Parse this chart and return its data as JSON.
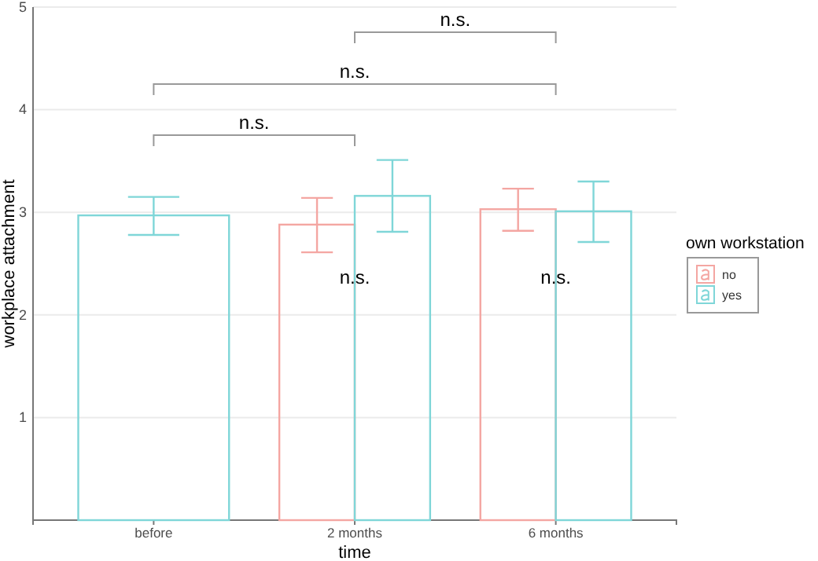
{
  "chart_data": {
    "type": "bar",
    "xlabel": "time",
    "ylabel": "workplace attachment",
    "legend_title": "own workstation",
    "legend": "right",
    "grid": "y",
    "categories": [
      "before",
      "2 months",
      "6 months"
    ],
    "series": [
      {
        "name": "no",
        "color": "#f4a6a2",
        "values": [
          null,
          2.88,
          3.03
        ],
        "errors": [
          null,
          [
            2.61,
            3.14
          ],
          [
            2.82,
            3.23
          ]
        ]
      },
      {
        "name": "yes",
        "color": "#7fd6d8",
        "values": [
          2.97,
          3.16,
          3.01
        ],
        "errors": [
          [
            2.78,
            3.15
          ],
          [
            2.81,
            3.51
          ],
          [
            2.71,
            3.3
          ]
        ]
      }
    ],
    "ylim": [
      0,
      5
    ],
    "yticks": [
      1,
      2,
      3,
      4,
      5
    ],
    "annotations": [
      "n.s.",
      "n.s.",
      "n.s.",
      {
        "text": "n.s.",
        "x": "2 months",
        "y": 2.35
      },
      {
        "text": "n.s.",
        "x": "6 months",
        "y": 2.35
      }
    ]
  }
}
